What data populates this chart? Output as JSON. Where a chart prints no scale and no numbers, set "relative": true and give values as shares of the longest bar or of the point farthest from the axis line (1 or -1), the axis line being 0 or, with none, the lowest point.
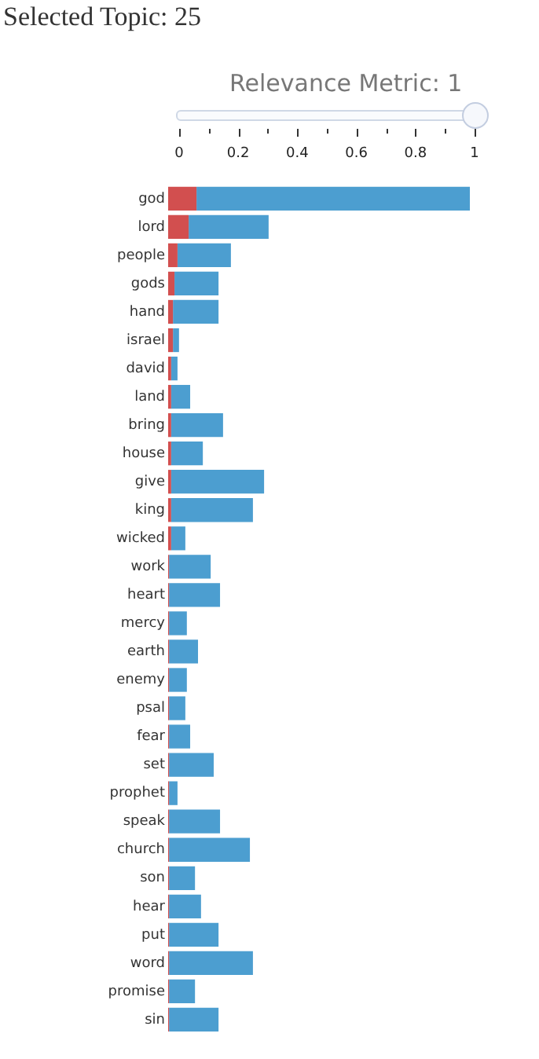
{
  "chart_data": {
    "type": "bar",
    "title": "Selected Topic: 25",
    "orientation": "horizontal",
    "stacked": true,
    "relative": true,
    "legend": false,
    "annotations": [
      "Relevance Metric: 1",
      "0",
      "0.2",
      "0.4",
      "0.6",
      "0.8",
      "1"
    ],
    "categories": [
      "god",
      "lord",
      "people",
      "gods",
      "hand",
      "israel",
      "david",
      "land",
      "bring",
      "house",
      "give",
      "king",
      "wicked",
      "work",
      "heart",
      "mercy",
      "earth",
      "enemy",
      "psal",
      "fear",
      "set",
      "prophet",
      "speak",
      "church",
      "son",
      "hear",
      "put",
      "word",
      "promise",
      "sin"
    ],
    "series": [
      {
        "color": "#d24f4f",
        "values": [
          0.094,
          0.068,
          0.031,
          0.021,
          0.016,
          0.016,
          0.01,
          0.01,
          0.01,
          0.01,
          0.01,
          0.01,
          0.01,
          0.003,
          0.003,
          0.003,
          0.003,
          0.003,
          0.003,
          0.003,
          0.003,
          0.003,
          0.003,
          0.003,
          0.003,
          0.003,
          0.003,
          0.003,
          0.003,
          0.003
        ]
      },
      {
        "color": "#4c9ed0",
        "values": [
          0.906,
          0.265,
          0.177,
          0.146,
          0.151,
          0.02,
          0.021,
          0.063,
          0.172,
          0.105,
          0.308,
          0.271,
          0.047,
          0.138,
          0.169,
          0.059,
          0.096,
          0.059,
          0.054,
          0.07,
          0.148,
          0.028,
          0.169,
          0.268,
          0.086,
          0.106,
          0.164,
          0.278,
          0.086,
          0.164
        ]
      }
    ]
  }
}
